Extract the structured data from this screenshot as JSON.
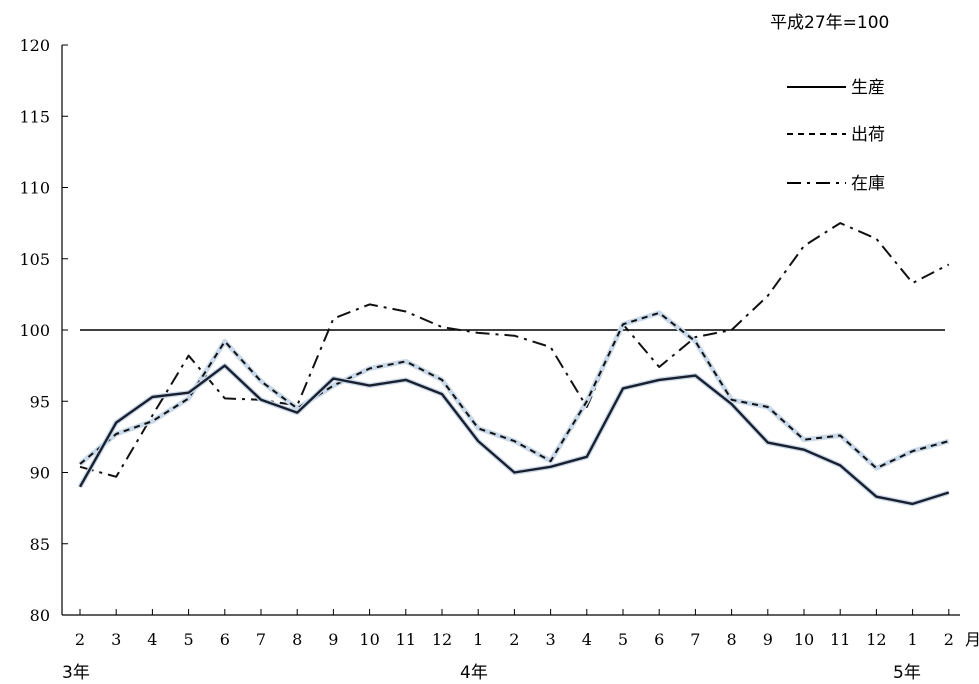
{
  "unit_note": "平成27年=100",
  "x_unit_label": "月",
  "year_labels": [
    "3年",
    "4年",
    "5年"
  ],
  "reference_line_value": 100,
  "chart_data": {
    "type": "line",
    "categories": [
      "2",
      "3",
      "4",
      "5",
      "6",
      "7",
      "8",
      "9",
      "10",
      "11",
      "12",
      "1",
      "2",
      "3",
      "4",
      "5",
      "6",
      "7",
      "8",
      "9",
      "10",
      "11",
      "12",
      "1",
      "2"
    ],
    "ylim": [
      80,
      120
    ],
    "yticks": [
      80,
      85,
      90,
      95,
      100,
      105,
      110,
      115,
      120
    ],
    "grid": false,
    "legend_position": "top-right",
    "series": [
      {
        "name": "生産",
        "style": "solid",
        "color": "#1a1f2e",
        "values": [
          89.0,
          93.5,
          95.3,
          95.6,
          97.5,
          95.1,
          94.2,
          96.6,
          96.1,
          96.5,
          95.5,
          92.2,
          90.0,
          90.4,
          91.1,
          95.9,
          96.5,
          96.8,
          94.8,
          92.1,
          91.6,
          90.5,
          88.3,
          87.8,
          88.6
        ]
      },
      {
        "name": "出荷",
        "style": "dashed",
        "color": "#111111",
        "values": [
          90.6,
          92.7,
          93.6,
          95.2,
          99.2,
          96.4,
          94.5,
          96.1,
          97.3,
          97.8,
          96.5,
          93.1,
          92.2,
          90.8,
          95.0,
          100.4,
          101.2,
          99.2,
          95.1,
          94.6,
          92.3,
          92.6,
          90.3,
          91.5,
          92.2
        ]
      },
      {
        "name": "在庫",
        "style": "dashdot",
        "color": "#111111",
        "values": [
          90.4,
          89.7,
          94.0,
          98.2,
          95.2,
          95.1,
          94.7,
          100.8,
          101.8,
          101.3,
          100.2,
          99.8,
          99.6,
          98.8,
          94.6,
          100.4,
          97.4,
          99.5,
          100.0,
          102.4,
          105.9,
          107.5,
          106.4,
          103.3,
          104.6
        ]
      }
    ]
  }
}
